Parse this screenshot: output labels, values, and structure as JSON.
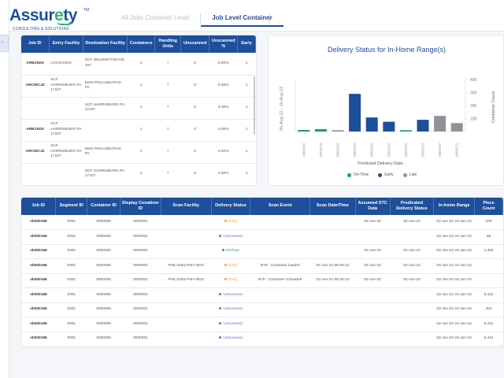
{
  "brand": {
    "name_pre": "Assur",
    "name_e": "e",
    "name_post": "ty",
    "tm": "TM",
    "tagline": "CONSULTING & SOLUTIONS"
  },
  "rail": {
    "tab_glyph": "›"
  },
  "tabs": [
    {
      "label": "All Jobs Container Level"
    },
    {
      "label": "Job Level Container"
    }
  ],
  "job_table": {
    "headers": [
      "Job ID",
      "Entry Facility",
      "Destination Facility",
      "Containers",
      "Handling Units",
      "Unscanned",
      "Unscanned %",
      "Early"
    ],
    "rows": [
      {
        "job_id": "ARBJSDX",
        "entry": "LOC6V2318",
        "dest": "SCF WILMINGTON DE 197",
        "containers": "1",
        "handling": "7",
        "unscanned": "0",
        "pct": "0.00%",
        "early": "1"
      },
      {
        "job_id": "ARCWCJZ",
        "entry": "SCF HARRISBURG PA 17107",
        "dest": "MXD PHILADELPHIA PA",
        "containers": "1",
        "handling": "7",
        "unscanned": "0",
        "pct": "0.00%",
        "early": "1"
      },
      {
        "job_id": "",
        "entry": "",
        "dest": "SCF HARRISBURG PA 17107",
        "containers": "1",
        "handling": "7",
        "unscanned": "0",
        "pct": "0.00%",
        "early": "1"
      },
      {
        "job_id": "ARBJSDX",
        "entry": "SCF HARRISBURG PA 17107",
        "dest": "",
        "containers": "1",
        "handling": "7",
        "unscanned": "0",
        "pct": "0.00%",
        "early": "1"
      },
      {
        "job_id": "ARCWCJZ",
        "entry": "SCF HARRISBURG PA 17107",
        "dest": "MXD PHILADELPHIA PA",
        "containers": "1",
        "handling": "7",
        "unscanned": "0",
        "pct": "0.00%",
        "early": "1"
      },
      {
        "job_id": "",
        "entry": "",
        "dest": "SCF HARRISBURG PA 17107",
        "containers": "1",
        "handling": "7",
        "unscanned": "0",
        "pct": "0.00%",
        "early": "1"
      }
    ]
  },
  "chart_data": {
    "type": "bar",
    "title": "Delivery Status for In-Home Range(s)",
    "xlabel": "Predicted Delivery Date",
    "ylabel": "Container Count",
    "left_axis_label": "05-Aug-22 - 10-Aug-22",
    "ylim": [
      0,
      400
    ],
    "yticks": [
      100,
      200,
      300,
      400
    ],
    "categories": [
      "08/09/22",
      "08/09/22",
      "08/09/22",
      "08/09/22",
      "08/09/22",
      "08/09/22",
      "08/09/22",
      "08/09/22",
      "08/09/22",
      "08/09/22"
    ],
    "series": [
      {
        "name": "On-Time",
        "color": "#1aa06a"
      },
      {
        "name": "Early",
        "color": "#1d4f9a"
      },
      {
        "name": "Late",
        "color": "#8f9398"
      }
    ],
    "bars": [
      {
        "series": 0,
        "value": 12
      },
      {
        "series": 0,
        "value": 18
      },
      {
        "series": 2,
        "value": 10
      },
      {
        "series": 1,
        "value": 290
      },
      {
        "series": 1,
        "value": 108
      },
      {
        "series": 1,
        "value": 75
      },
      {
        "series": 0,
        "value": 10
      },
      {
        "series": 1,
        "value": 90
      },
      {
        "series": 2,
        "value": 120
      },
      {
        "series": 2,
        "value": 65
      }
    ],
    "legend_position": "bottom"
  },
  "detail_table": {
    "headers": [
      "Job ID",
      "Segment ID",
      "Container ID",
      "Display Conatiner ID",
      "Scan Facility",
      "Delivery Status",
      "Scan Event",
      "Scan Date/Time",
      "Assumed STC Data",
      "Predicated Delivery Status",
      "In-home Range",
      "Piece Count"
    ],
    "rows": [
      {
        "job": "sb000156",
        "seg": "0001",
        "cid": "0000005",
        "disp": "0000001",
        "fac": "",
        "status": "Early",
        "scolor": "#f0a928",
        "event": "",
        "dt": "",
        "stc": "02-Jun-22",
        "pred": "02-Jun-22",
        "range": "02-Jun-22 24-Jun-22",
        "pieces": "100"
      },
      {
        "job": "sb000156",
        "seg": "0001",
        "cid": "0000005",
        "disp": "0000001",
        "fac": "",
        "status": "Unscanned",
        "scolor": "#8a5cc7",
        "event": "",
        "dt": "",
        "stc": "",
        "pred": "",
        "range": "02-Jun-22 24-Jun-22",
        "pieces": "96"
      },
      {
        "job": "sb000156",
        "seg": "0001",
        "cid": "0000005",
        "disp": "0000001",
        "fac": "",
        "status": "OnTime",
        "scolor": "#1aa06a",
        "event": "",
        "dt": "",
        "stc": "02-Jun-22",
        "pred": "02-Jun-22",
        "range": "02-Jun-22 24-Jun-22",
        "pieces": "1,400"
      },
      {
        "job": "sb000156",
        "seg": "0001",
        "cid": "0000005",
        "disp": "0000001",
        "fac": "PHILADELPHIA NDC",
        "status": "Early",
        "scolor": "#f0a928",
        "event": "B78 - Container loaded",
        "dt": "02-Jun-22 08:29:13",
        "stc": "02-Jun-22",
        "pred": "02-Jun-22",
        "range": "02-Jun-22 24-Jun-22",
        "pieces": ""
      },
      {
        "job": "sb000156",
        "seg": "0001",
        "cid": "0000005",
        "disp": "0000001",
        "fac": "PHILADELPHIA NDC",
        "status": "Early",
        "scolor": "#f0a928",
        "event": "B7b - Container Unloaded",
        "dt": "02-Jun-22 08:29:13",
        "stc": "02-Jun-22",
        "pred": "02-Jun-22",
        "range": "02-Jun-22 24-Jun-22",
        "pieces": ""
      },
      {
        "job": "sb000156",
        "seg": "0001",
        "cid": "0000005",
        "disp": "0000001",
        "fac": "",
        "status": "Unscanned",
        "scolor": "#8a5cc7",
        "event": "",
        "dt": "",
        "stc": "",
        "pred": "",
        "range": "02-Jun-22 24-Jun-22",
        "pieces": "6,431"
      },
      {
        "job": "sb000156",
        "seg": "0001",
        "cid": "0000005",
        "disp": "0000001",
        "fac": "",
        "status": "Unscanned",
        "scolor": "#8a5cc7",
        "event": "",
        "dt": "",
        "stc": "",
        "pred": "",
        "range": "02-Jun-22 24-Jun-22",
        "pieces": "464"
      },
      {
        "job": "sb000156",
        "seg": "0001",
        "cid": "0000005",
        "disp": "0000001",
        "fac": "",
        "status": "Unscanned",
        "scolor": "#8a5cc7",
        "event": "",
        "dt": "",
        "stc": "",
        "pred": "",
        "range": "02-Jun-22 24-Jun-22",
        "pieces": "6,431"
      },
      {
        "job": "sb000156",
        "seg": "0001",
        "cid": "0000005",
        "disp": "0000001",
        "fac": "",
        "status": "Unscanned",
        "scolor": "#8a5cc7",
        "event": "",
        "dt": "",
        "stc": "",
        "pred": "",
        "range": "02-Jun-22 24-Jun-22",
        "pieces": "6,431"
      }
    ]
  }
}
